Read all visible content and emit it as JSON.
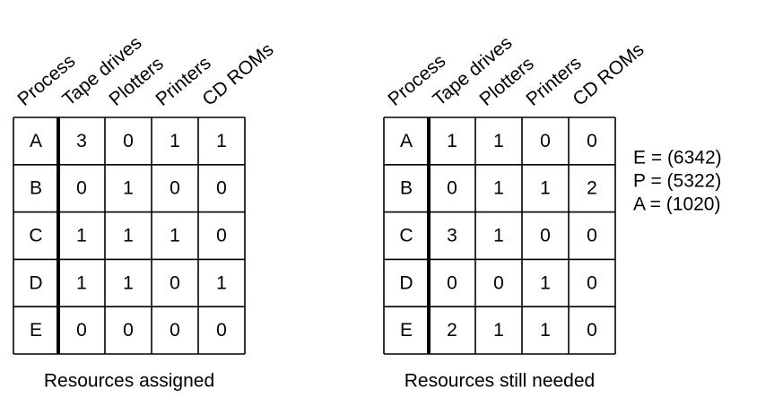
{
  "tables": [
    {
      "headers": [
        "Process",
        "Tape drives",
        "Plotters",
        "Printers",
        "CD ROMs"
      ],
      "rows": [
        [
          "A",
          3,
          0,
          1,
          1
        ],
        [
          "B",
          0,
          1,
          0,
          0
        ],
        [
          "C",
          1,
          1,
          1,
          0
        ],
        [
          "D",
          1,
          1,
          0,
          1
        ],
        [
          "E",
          0,
          0,
          0,
          0
        ]
      ],
      "caption": "Resources assigned"
    },
    {
      "headers": [
        "Process",
        "Tape drives",
        "Plotters",
        "Printers",
        "CD ROMs"
      ],
      "rows": [
        [
          "A",
          1,
          1,
          0,
          0
        ],
        [
          "B",
          0,
          1,
          1,
          2
        ],
        [
          "C",
          3,
          1,
          0,
          0
        ],
        [
          "D",
          0,
          0,
          1,
          0
        ],
        [
          "E",
          2,
          1,
          1,
          0
        ]
      ],
      "caption": "Resources still needed"
    }
  ],
  "vectors": [
    "E = (6342)",
    "P = (5322)",
    "A = (1020)"
  ]
}
